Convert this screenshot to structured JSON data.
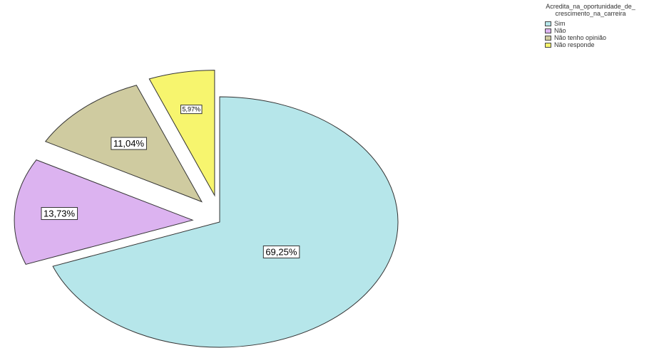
{
  "chart_data": {
    "type": "pie",
    "legend_title": "Acredita_na_oportunidade_de_\ncrescimento_na_carreira",
    "legend_position": "top-right",
    "categories": [
      "Sim",
      "Não",
      "Não tenho opinião",
      "Não responde"
    ],
    "values": [
      69.25,
      13.73,
      11.04,
      5.97
    ],
    "labels": [
      "69,25%",
      "13,73%",
      "11,04%",
      "5,97%"
    ],
    "colors": [
      "#b6e6ea",
      "#dcb3f0",
      "#cfcba0",
      "#f7f56e"
    ],
    "exploded": [
      false,
      true,
      true,
      true
    ]
  }
}
